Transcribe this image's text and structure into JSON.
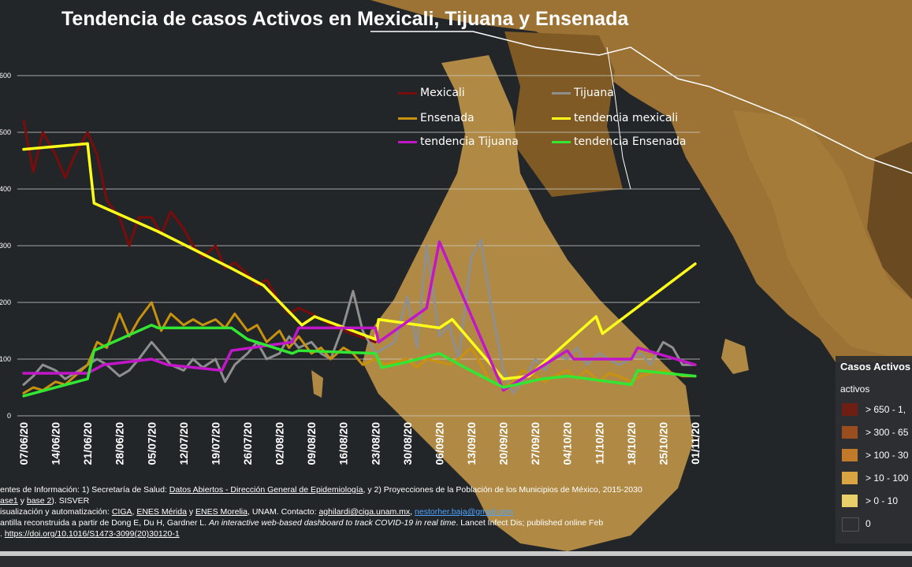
{
  "title": "Tendencia de casos Activos en Mexicali, Tijuana y Ensenada",
  "sources": {
    "line1_prefix": "entes de Información: 1) Secretaría de Salud: ",
    "line1_link": "Datos Abiertos - Dirección General de Epidemiología",
    "line1_suffix": ", y 2) Proyecciones de la Población de los Municipios de México, 2015-2030",
    "line2_a": "ase1",
    "line2_b": " y ",
    "line2_c": "base 2",
    "line2_d": "). SISVER",
    "line3_prefix": "isualización y automatización: ",
    "line3_ciga": "CIGA",
    "line3_sep1": ", ",
    "line3_merida": "ENES Mérida",
    "line3_sep2": " y ",
    "line3_morelia": "ENES Morelia",
    "line3_mid": ", UNAM. Contacto: ",
    "line3_email1": "aghilardi@ciga.unam.mx",
    "line3_sep3": ", ",
    "line3_email2": "nestorher.baja@gmail.com",
    "line4_prefix": "antilla reconstruida a partir de Dong E, Du H, Gardner L. ",
    "line4_italic": "An interactive web-based dashboard to track COVID-19 in real time",
    "line4_suffix": ". Lancet Infect Dis; published online Feb",
    "line5_prefix": ". ",
    "line5_doi": "https://doi.org/10.1016/S1473-3099(20)30120-1"
  },
  "map_legend": {
    "title": "Casos Activos",
    "subtitle": "activos",
    "items": [
      {
        "label": "> 650 - 1,",
        "color": "#6e1e12"
      },
      {
        "label": "> 300 - 65",
        "color": "#9a4e20"
      },
      {
        "label": "> 100 - 30",
        "color": "#c07a2a"
      },
      {
        "label": "> 10 - 100",
        "color": "#d9a441"
      },
      {
        "label": "> 0 - 10",
        "color": "#e8cf6a"
      },
      {
        "label": "0",
        "color": "#2d2f32"
      }
    ]
  },
  "colors": {
    "mexicali": "#7a0c0c",
    "tijuana": "#8f8f8f",
    "ensenada": "#c8920f",
    "tendencia_mexicali": "#ffff1a",
    "tendencia_tijuana": "#c217c9",
    "tendencia_ensenada": "#33e633",
    "grid": "#cfcfcf",
    "map_dark": "#232629",
    "map_land_light": "#b08a45",
    "map_land_mid": "#9c7335"
  },
  "chart_data": {
    "type": "line",
    "title": "Tendencia de casos Activos en Mexicali, Tijuana y Ensenada",
    "xlabel": "",
    "ylabel": "",
    "x_tick_labels": [
      "07/06/20",
      "14/06/20",
      "21/06/20",
      "28/06/20",
      "05/07/20",
      "12/07/20",
      "19/07/20",
      "26/07/20",
      "02/08/20",
      "09/08/20",
      "16/08/20",
      "23/08/20",
      "30/08/20",
      "06/09/20",
      "13/09/20",
      "20/09/20",
      "27/09/20",
      "04/10/20",
      "11/10/20",
      "18/10/20",
      "25/10/20",
      "01/11/20"
    ],
    "y_tick_labels": [
      "0",
      "100",
      "200",
      "300",
      "400",
      "500",
      "600"
    ],
    "ylim": [
      0,
      600
    ],
    "grid": true,
    "legend_position": "top",
    "series": [
      {
        "name": "Mexicali",
        "color_key": "mexicali",
        "x": [
          0,
          0.3,
          0.6,
          1,
          1.3,
          1.6,
          2,
          2.3,
          2.6,
          3,
          3.3,
          3.6,
          4,
          4.3,
          4.6,
          5,
          5.3,
          5.6,
          6,
          6.3,
          6.6,
          7,
          7.3,
          7.6,
          8,
          8.3,
          8.6,
          9,
          9.3,
          9.6,
          10,
          10.5,
          11
        ],
        "y": [
          520,
          430,
          500,
          460,
          420,
          460,
          500,
          460,
          380,
          350,
          300,
          350,
          350,
          320,
          360,
          330,
          300,
          280,
          300,
          260,
          270,
          250,
          230,
          240,
          200,
          180,
          190,
          180,
          170,
          160,
          150,
          140,
          130
        ]
      },
      {
        "name": "Tijuana",
        "color_key": "tijuana",
        "x": [
          0,
          0.3,
          0.6,
          1,
          1.3,
          1.6,
          2,
          2.3,
          2.6,
          3,
          3.3,
          3.6,
          4,
          4.3,
          4.6,
          5,
          5.3,
          5.6,
          6,
          6.3,
          6.6,
          7,
          7.3,
          7.6,
          8,
          8.3,
          8.6,
          9,
          9.3,
          9.6,
          10,
          10.3,
          10.6,
          11,
          11.3,
          11.6,
          12,
          12.3,
          12.6,
          13,
          13.3,
          13.6,
          14,
          14.3,
          14.6,
          15,
          15.3,
          15.6,
          16,
          16.3,
          16.6,
          17,
          17.3,
          17.6,
          18,
          18.3,
          18.6,
          19,
          19.3,
          19.6,
          20,
          20.3,
          20.6,
          21
        ],
        "y": [
          55,
          70,
          90,
          80,
          65,
          75,
          90,
          100,
          90,
          70,
          80,
          100,
          130,
          110,
          90,
          80,
          100,
          85,
          100,
          60,
          90,
          110,
          130,
          100,
          110,
          140,
          120,
          130,
          110,
          100,
          160,
          220,
          150,
          110,
          120,
          130,
          210,
          120,
          300,
          140,
          160,
          100,
          280,
          310,
          200,
          80,
          40,
          60,
          100,
          80,
          110,
          100,
          120,
          90,
          110,
          100,
          90,
          100,
          110,
          90,
          130,
          120,
          90,
          90
        ]
      },
      {
        "name": "Ensenada",
        "color_key": "ensenada",
        "x": [
          0,
          0.3,
          0.6,
          1,
          1.3,
          1.6,
          2,
          2.3,
          2.6,
          3,
          3.3,
          3.6,
          4,
          4.3,
          4.6,
          5,
          5.3,
          5.6,
          6,
          6.3,
          6.6,
          7,
          7.3,
          7.6,
          8,
          8.3,
          8.6,
          9,
          9.3,
          9.6,
          10,
          10.3,
          10.6,
          11,
          11.3,
          11.6,
          12,
          12.3,
          12.6,
          13,
          13.3,
          13.6,
          14,
          14.3,
          14.6,
          15,
          15.3,
          15.6,
          16,
          16.3,
          16.6,
          17,
          17.3,
          17.6,
          18,
          18.3,
          18.6,
          19,
          19.3,
          19.6,
          20,
          20.3,
          20.6,
          21
        ],
        "y": [
          40,
          50,
          45,
          60,
          55,
          70,
          90,
          130,
          120,
          180,
          140,
          170,
          200,
          150,
          180,
          160,
          170,
          160,
          170,
          155,
          180,
          150,
          160,
          130,
          150,
          120,
          140,
          110,
          120,
          100,
          120,
          110,
          90,
          100,
          90,
          95,
          100,
          85,
          100,
          95,
          90,
          100,
          120,
          90,
          60,
          50,
          60,
          80,
          70,
          60,
          70,
          80,
          65,
          80,
          60,
          75,
          70,
          60,
          70,
          75,
          80,
          75,
          70,
          70
        ]
      },
      {
        "name": "tendencia mexicali",
        "color_key": "tendencia_mexicali",
        "x": [
          0,
          2,
          2.2,
          4.2,
          6.5,
          7.5,
          8.7,
          9.1,
          11,
          11.1,
          13,
          13.4,
          15,
          15.8,
          17.9,
          18.1,
          21
        ],
        "y": [
          470,
          480,
          375,
          325,
          260,
          230,
          160,
          175,
          135,
          170,
          155,
          170,
          65,
          70,
          175,
          145,
          268
        ]
      },
      {
        "name": "tendencia Tijuana",
        "color_key": "tendencia_tijuana",
        "x": [
          0,
          2,
          2.5,
          4,
          4.5,
          6.2,
          6.5,
          8.4,
          8.6,
          11,
          11.1,
          12.6,
          13,
          15,
          17,
          17.2,
          19,
          19.2,
          21
        ],
        "y": [
          75,
          75,
          90,
          100,
          90,
          80,
          115,
          130,
          155,
          155,
          130,
          190,
          307,
          45,
          115,
          100,
          100,
          120,
          90
        ]
      },
      {
        "name": "tendencia Ensenada",
        "color_key": "tendencia_ensenada",
        "x": [
          0,
          2,
          2.2,
          4,
          4.2,
          6.5,
          7,
          8.4,
          8.6,
          11,
          11.2,
          12,
          13,
          13.8,
          15,
          16.2,
          17,
          19,
          19.2,
          21
        ],
        "y": [
          35,
          65,
          115,
          160,
          155,
          155,
          135,
          110,
          115,
          110,
          85,
          95,
          110,
          85,
          50,
          65,
          70,
          55,
          80,
          70
        ]
      }
    ]
  }
}
